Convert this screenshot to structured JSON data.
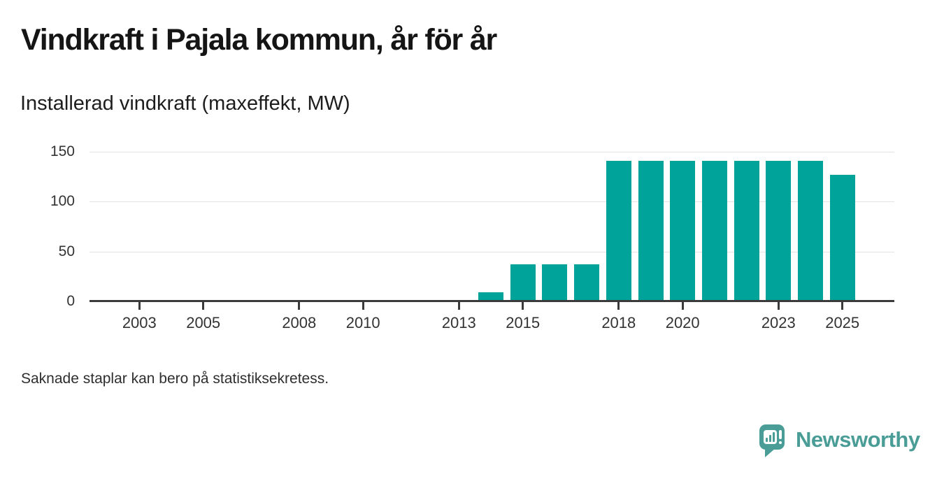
{
  "header": {
    "title": "Vindkraft i Pajala kommun, år för år",
    "subtitle": "Installerad vindkraft (maxeffekt, MW)"
  },
  "footer": {
    "note": "Saknade staplar kan bero på statistiksekretess."
  },
  "branding": {
    "wordmark": "Newsworthy",
    "logo_icon": "newsworthy-speech-bubble-chart-icon"
  },
  "colors": {
    "bar": "#00a39a",
    "logo_teal": "#4a9d96",
    "axis_line": "#3b3b3b",
    "gridline": "#e3e3e3",
    "title_text": "#151515",
    "tick_text": "#333333"
  },
  "chart_data": {
    "type": "bar",
    "title": "Vindkraft i Pajala kommun, år för år",
    "subtitle_ylabel": "Installerad vindkraft (maxeffekt, MW)",
    "xlabel": "",
    "ylim": [
      0,
      150
    ],
    "yticks": [
      0,
      50,
      100,
      150
    ],
    "xticks": [
      2003,
      2005,
      2008,
      2010,
      2013,
      2015,
      2018,
      2020,
      2023,
      2025
    ],
    "x_axis_year_range": [
      2001.4,
      2026.7
    ],
    "grid": "horizontal",
    "legend": "none",
    "series": [
      {
        "name": "Installerad vindkraft (maxeffekt, MW)",
        "points": [
          {
            "year": 2014,
            "value": 9
          },
          {
            "year": 2015,
            "value": 37
          },
          {
            "year": 2016,
            "value": 37
          },
          {
            "year": 2017,
            "value": 37
          },
          {
            "year": 2018,
            "value": 141
          },
          {
            "year": 2019,
            "value": 141
          },
          {
            "year": 2020,
            "value": 141
          },
          {
            "year": 2021,
            "value": 141
          },
          {
            "year": 2022,
            "value": 141
          },
          {
            "year": 2023,
            "value": 141
          },
          {
            "year": 2024,
            "value": 141
          },
          {
            "year": 2025,
            "value": 127
          }
        ]
      }
    ]
  }
}
